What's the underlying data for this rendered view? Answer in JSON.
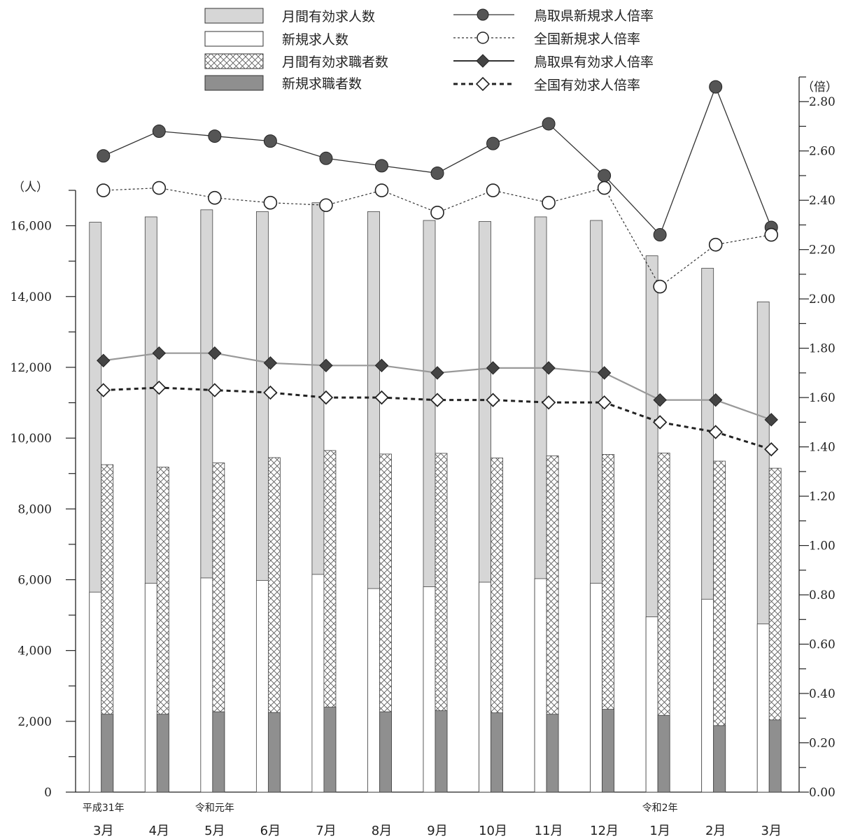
{
  "chart_data": {
    "type": "bar",
    "categories": [
      "3月",
      "4月",
      "5月",
      "6月",
      "7月",
      "8月",
      "9月",
      "10月",
      "11月",
      "12月",
      "1月",
      "2月",
      "3月"
    ],
    "era_labels": [
      {
        "index": 0,
        "label": "平成31年"
      },
      {
        "index": 2,
        "label": "令和元年"
      },
      {
        "index": 10,
        "label": "令和2年"
      }
    ],
    "left_axis": {
      "unit": "（人）",
      "ylim": [
        0,
        17000
      ],
      "ticks": [
        "0",
        "2,000",
        "4,000",
        "6,000",
        "8,000",
        "10,000",
        "12,000",
        "14,000",
        "16,000"
      ],
      "tick_values": [
        0,
        2000,
        4000,
        6000,
        8000,
        10000,
        12000,
        14000,
        16000
      ]
    },
    "right_axis": {
      "unit": "（倍）",
      "ylim": [
        0,
        2.9
      ],
      "ticks": [
        "0.00",
        "0.20",
        "0.40",
        "0.60",
        "0.80",
        "1.00",
        "1.20",
        "1.40",
        "1.60",
        "1.80",
        "2.00",
        "2.20",
        "2.40",
        "2.60",
        "2.80"
      ],
      "tick_values": [
        0,
        0.2,
        0.4,
        0.6,
        0.8,
        1.0,
        1.2,
        1.4,
        1.6,
        1.8,
        2.0,
        2.2,
        2.4,
        2.6,
        2.8
      ]
    },
    "bar_series": [
      {
        "name": "月間有効求人数",
        "values": [
          16100,
          16250,
          16450,
          16400,
          16650,
          16400,
          16150,
          16120,
          16250,
          16150,
          15150,
          14800,
          13850
        ]
      },
      {
        "name": "新規求人数",
        "values": [
          5650,
          5900,
          6050,
          5980,
          6150,
          5750,
          5800,
          5930,
          6030,
          5900,
          4950,
          5450,
          4750
        ]
      },
      {
        "name": "月間有効求職者数",
        "values": [
          9250,
          9180,
          9300,
          9450,
          9650,
          9550,
          9570,
          9440,
          9500,
          9540,
          9580,
          9350,
          9150
        ]
      },
      {
        "name": "新規求職者数",
        "values": [
          2200,
          2200,
          2270,
          2250,
          2400,
          2270,
          2300,
          2240,
          2200,
          2340,
          2170,
          1880,
          2040
        ]
      }
    ],
    "line_series": [
      {
        "name": "鳥取県新規求人倍率",
        "values": [
          2.58,
          2.68,
          2.66,
          2.64,
          2.57,
          2.54,
          2.51,
          2.63,
          2.71,
          2.5,
          2.26,
          2.86,
          2.29
        ]
      },
      {
        "name": "全国新規求人倍率",
        "values": [
          2.44,
          2.45,
          2.41,
          2.39,
          2.38,
          2.44,
          2.35,
          2.44,
          2.39,
          2.45,
          2.05,
          2.22,
          2.26
        ]
      },
      {
        "name": "鳥取県有効求人倍率",
        "values": [
          1.75,
          1.78,
          1.78,
          1.74,
          1.73,
          1.73,
          1.7,
          1.72,
          1.72,
          1.7,
          1.59,
          1.59,
          1.51
        ]
      },
      {
        "name": "全国有効求人倍率",
        "values": [
          1.63,
          1.64,
          1.63,
          1.62,
          1.6,
          1.6,
          1.59,
          1.59,
          1.58,
          1.58,
          1.5,
          1.46,
          1.39
        ]
      }
    ],
    "legend_placement": "top",
    "grid": false
  }
}
